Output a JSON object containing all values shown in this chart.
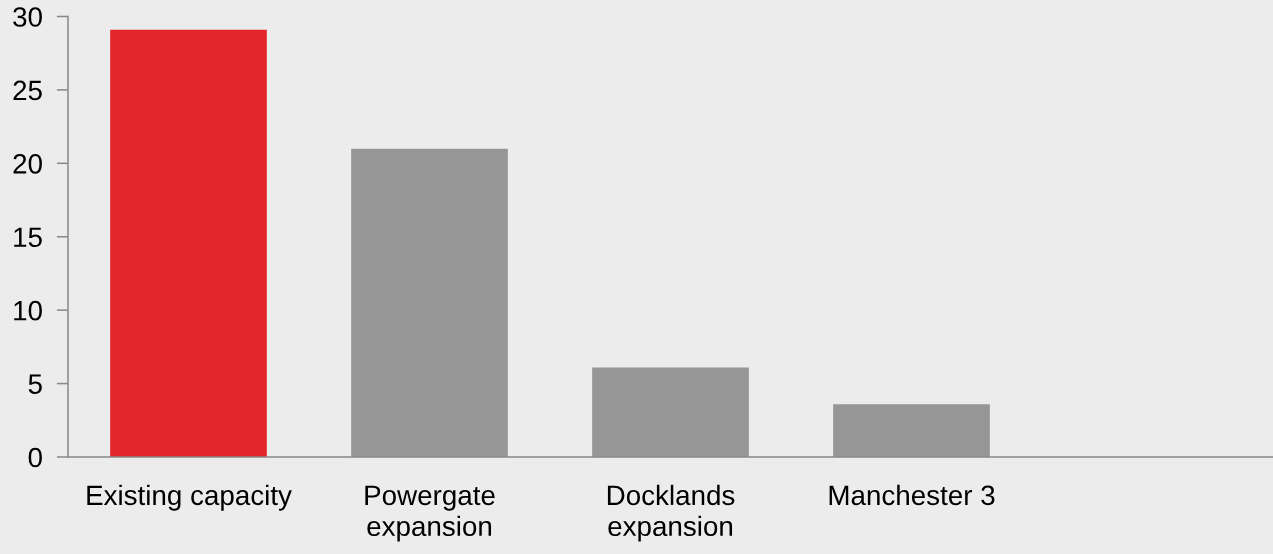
{
  "chart_data": {
    "type": "bar",
    "categories": [
      "Existing capacity",
      "Powergate\nexpansion",
      "Docklands\nexpansion",
      "Manchester 3",
      null
    ],
    "values": [
      29.1,
      21.0,
      6.1,
      3.6,
      null
    ],
    "colors": [
      "#e3262a",
      "#969696",
      "#969696",
      "#969696",
      "#969696"
    ],
    "ylim": [
      0,
      30
    ],
    "yticks": [
      0,
      5,
      10,
      15,
      20,
      25,
      30
    ]
  }
}
